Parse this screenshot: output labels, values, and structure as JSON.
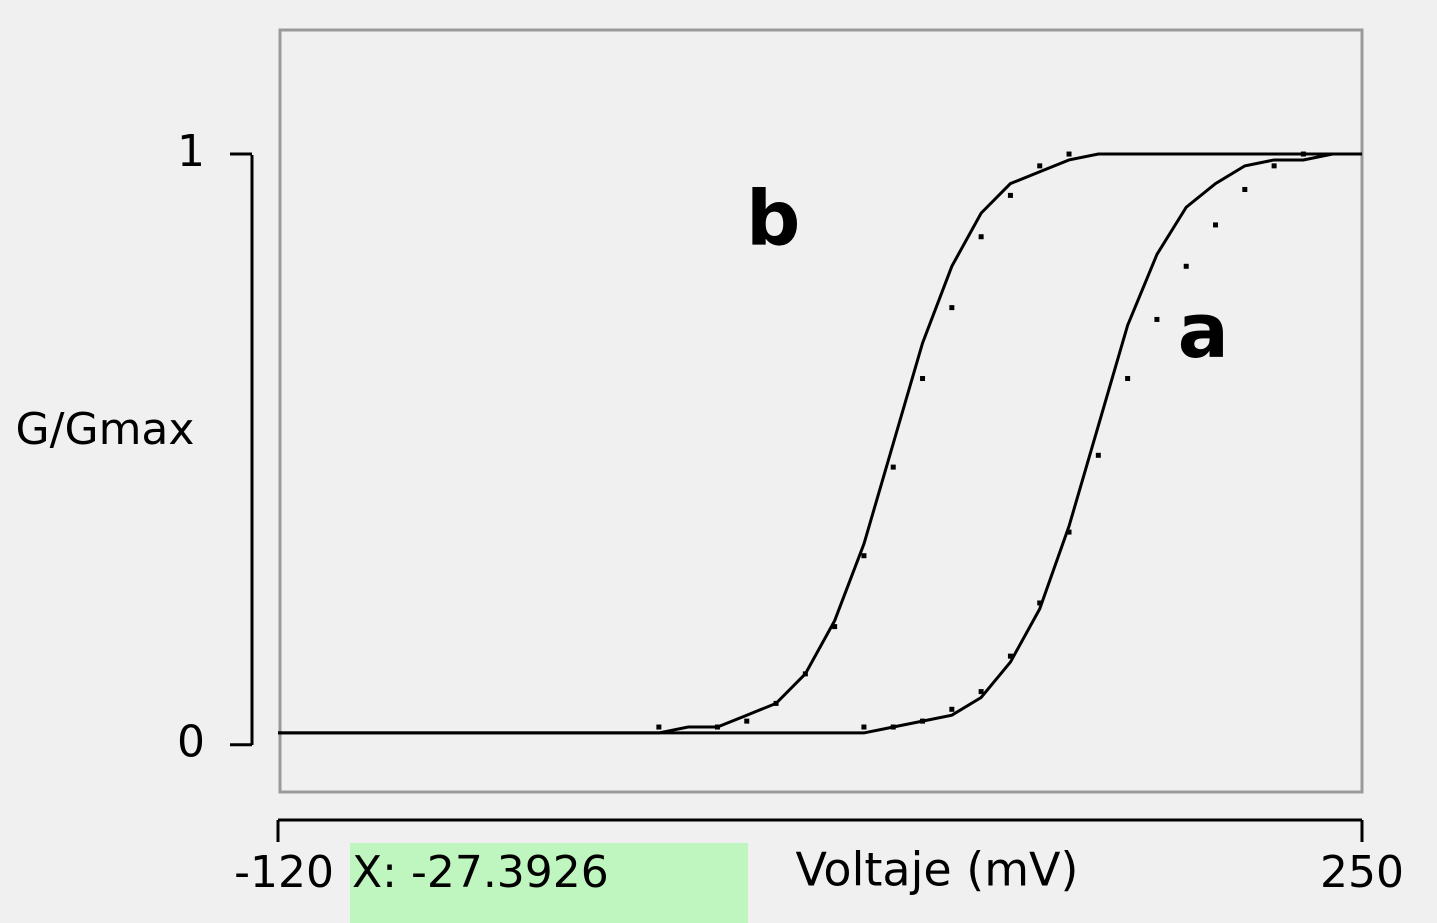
{
  "chart_data": {
    "type": "line",
    "y_label": "G/Gmax",
    "x_label": "Voltaje (mV)",
    "cursor_readout": "X: -27.3926",
    "xlim": [
      -120,
      250
    ],
    "xticks": [
      -120,
      250
    ],
    "ylim": [
      -0.08,
      1.21
    ],
    "yticks": [
      0,
      1
    ],
    "color": "#000000",
    "series": [
      {
        "name": "a",
        "x": [
          -120,
          0,
          10,
          20,
          30,
          40,
          50,
          60,
          70,
          80,
          90,
          100,
          110,
          120,
          130,
          140,
          150,
          160,
          170,
          180,
          190,
          200,
          210,
          220,
          230,
          240,
          250
        ],
        "values": [
          0.02,
          0.02,
          0.02,
          0.02,
          0.02,
          0.02,
          0.02,
          0.02,
          0.02,
          0.02,
          0.03,
          0.04,
          0.05,
          0.08,
          0.14,
          0.23,
          0.37,
          0.54,
          0.71,
          0.83,
          0.91,
          0.95,
          0.98,
          0.99,
          0.99,
          1,
          1
        ],
        "points": {
          "x": [
            80,
            90,
            100,
            110,
            120,
            130,
            140,
            150,
            160,
            170,
            180,
            190,
            200,
            210,
            220,
            230
          ],
          "values": [
            0.03,
            0.03,
            0.04,
            0.06,
            0.09,
            0.15,
            0.24,
            0.36,
            0.49,
            0.62,
            0.72,
            0.81,
            0.88,
            0.94,
            0.98,
            1
          ]
        }
      },
      {
        "name": "b",
        "x": [
          -120,
          0,
          10,
          20,
          30,
          40,
          50,
          60,
          70,
          80,
          90,
          100,
          110,
          120,
          130,
          140,
          150,
          160,
          170,
          180,
          190,
          200,
          210,
          220,
          230,
          240,
          250
        ],
        "values": [
          0.02,
          0.02,
          0.02,
          0.03,
          0.03,
          0.05,
          0.07,
          0.12,
          0.21,
          0.34,
          0.51,
          0.68,
          0.81,
          0.9,
          0.95,
          0.97,
          0.99,
          1,
          1,
          1,
          1,
          1,
          1,
          1,
          1,
          1,
          1
        ],
        "points": {
          "x": [
            10,
            30,
            40,
            50,
            60,
            70,
            80,
            90,
            100,
            110,
            120,
            130,
            140,
            150
          ],
          "values": [
            0.03,
            0.03,
            0.04,
            0.07,
            0.12,
            0.2,
            0.32,
            0.47,
            0.62,
            0.74,
            0.86,
            0.93,
            0.98,
            1
          ]
        }
      }
    ]
  }
}
